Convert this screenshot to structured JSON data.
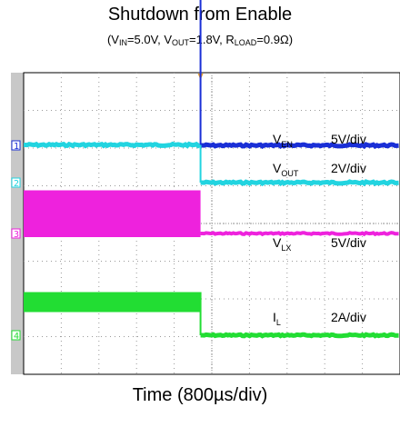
{
  "chart_data": {
    "type": "line",
    "title": "Shutdown from Enable",
    "subtitle": {
      "vin_label": "V",
      "vin_sub": "IN",
      "vin_value": "=5.0V, ",
      "vout_label": "V",
      "vout_sub": "OUT",
      "vout_value": "=1.8V, ",
      "rload_label": "R",
      "rload_sub": "LOAD",
      "rload_value": "=0.9Ω"
    },
    "xlabel": "Time (800µs/div)",
    "grid": true,
    "trigger_position_div": 4.7,
    "series": [
      {
        "id": "1",
        "base": "V",
        "sub": "EN",
        "scale": "5V/div",
        "color": "#1a2fd6",
        "high_div": 4.4,
        "low_div": 0
      },
      {
        "id": "2",
        "base": "V",
        "sub": "OUT",
        "scale": "2V/div",
        "color": "#22d4e0",
        "high_div": 1.0,
        "low_div": 0
      },
      {
        "id": "3",
        "base": "V",
        "sub": "LX",
        "scale": "5V/div",
        "color": "#ee22dd",
        "high_div": 1.0,
        "low_div": 0
      },
      {
        "id": "4",
        "base": "I",
        "sub": "L",
        "scale": "2A/div",
        "color": "#22dd33",
        "high_div": 1.0,
        "low_div": 0
      }
    ]
  }
}
